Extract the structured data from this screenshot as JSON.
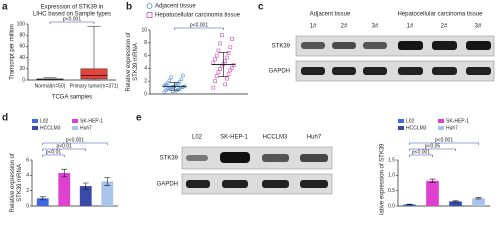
{
  "panel_letters": [
    "a",
    "b",
    "c",
    "d",
    "e"
  ],
  "chart_data": [
    {
      "type": "box",
      "title": [
        "Expression of STK39 in",
        "LIHC based on Sample types"
      ],
      "y_label": "Transcript per million",
      "x_label": "TCGA samples",
      "ylim": [
        0,
        100
      ],
      "yticks": [
        0,
        20,
        40,
        60,
        80,
        100
      ],
      "series": [
        {
          "name": "Normal(n=50)",
          "color": "#4a7fc1",
          "min": 0,
          "q1": 0.5,
          "median": 1,
          "q3": 2,
          "max": 4
        },
        {
          "name": "Primary tumor(n=371)",
          "color": "#e8433a",
          "min": 0,
          "q1": 2,
          "median": 8,
          "q3": 20,
          "max": 96
        }
      ],
      "annotations": [
        "p<0.001"
      ]
    },
    {
      "type": "scatter",
      "y_label": [
        "Relative expression of",
        "STK39 mRNA"
      ],
      "ylim": [
        0,
        10
      ],
      "yticks": [
        0,
        2,
        4,
        6,
        8,
        10
      ],
      "series": [
        {
          "name": "Adjacent tissue",
          "color": "#4a90d9",
          "marker": "circle",
          "values": [
            0.3,
            0.5,
            0.6,
            0.7,
            0.8,
            0.8,
            0.9,
            1.0,
            1.0,
            1.1,
            1.1,
            1.2,
            1.2,
            1.3,
            1.4,
            1.5,
            1.6,
            1.7,
            1.9,
            2.1,
            2.3,
            2.6,
            2.9,
            0.4
          ],
          "mean": 1.2,
          "sd": 0.6
        },
        {
          "name": "Hepatocellular carcinoma tissue",
          "color": "#d24fb8",
          "marker": "square",
          "values": [
            1.0,
            1.5,
            2.0,
            2.4,
            2.8,
            3.1,
            3.4,
            3.7,
            3.9,
            4.1,
            4.3,
            4.5,
            4.7,
            4.9,
            5.1,
            5.4,
            5.7,
            6.0,
            6.4,
            6.8,
            7.3,
            7.9,
            8.6,
            9.2
          ],
          "mean": 4.6,
          "sd": 1.9
        }
      ],
      "annotations": [
        "p<0.001"
      ]
    },
    {
      "type": "bar",
      "y_label": [
        "Relative expression of",
        "STK39 mRNA"
      ],
      "ylim": [
        0,
        6
      ],
      "yticks": [
        0,
        2,
        4,
        6
      ],
      "categories": [
        "L02",
        "SK-HEP-1",
        "HCCLM3",
        "Huh7"
      ],
      "colors": [
        "#4169e1",
        "#e040d0",
        "#3a4aa8",
        "#a9c4ec"
      ],
      "values": [
        1.0,
        4.3,
        2.6,
        3.2
      ],
      "errors": [
        0.2,
        0.5,
        0.4,
        0.5
      ],
      "annotations": [
        "p<0.01",
        "p<0.01",
        "p<0.001"
      ]
    },
    {
      "type": "bar",
      "y_label": "Relative expression of STK39",
      "ylim": [
        0,
        1.5
      ],
      "yticks": [
        {
          "value": 0,
          "label": "0.0"
        },
        0.5,
        {
          "value": 1,
          "label": "1.0"
        },
        1.5
      ],
      "categories": [
        "L02",
        "SK-HEP-1",
        "HCCLM3",
        "Huh7"
      ],
      "colors": [
        "#4169e1",
        "#e040d0",
        "#3a4aa8",
        "#a9c4ec"
      ],
      "values": [
        0.05,
        0.82,
        0.15,
        0.25
      ],
      "errors": [
        0.01,
        0.06,
        0.02,
        0.02
      ],
      "annotations": [
        "p<0.001",
        "p<0.05",
        "p<0.001"
      ]
    }
  ],
  "blots": [
    {
      "group_labels": [
        "Adjacent tissue",
        "Hepatocellular carcinoma tissue"
      ],
      "lanes": [
        "1#",
        "2#",
        "3#",
        "1#",
        "2#",
        "3#"
      ],
      "rows": [
        "STK39",
        "GAPDH"
      ]
    },
    {
      "lanes": [
        "L02",
        "SK-HEP-1",
        "HCCLM3",
        "Huh7"
      ],
      "rows": [
        "STK39",
        "GAPDH"
      ]
    }
  ]
}
